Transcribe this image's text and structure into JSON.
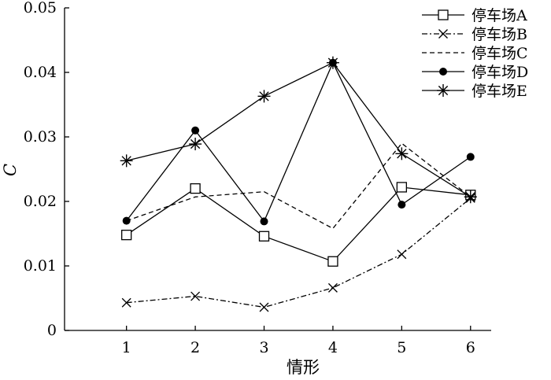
{
  "chart_data": {
    "type": "line",
    "title": "",
    "xlabel": "情形",
    "ylabel": "C",
    "x": [
      1,
      2,
      3,
      4,
      5,
      6
    ],
    "xlim": [
      0.1,
      6.3
    ],
    "ylim": [
      0,
      0.05
    ],
    "xticks": [
      "1",
      "2",
      "3",
      "4",
      "5",
      "6"
    ],
    "yticks": [
      "0",
      "0.01",
      "0.02",
      "0.03",
      "0.04",
      "0.05"
    ],
    "grid": false,
    "legend_position": "top-right",
    "series": [
      {
        "name": "停车场A",
        "marker": "open-square",
        "line_style": "solid",
        "values": [
          0.0148,
          0.022,
          0.0146,
          0.0107,
          0.0222,
          0.021
        ]
      },
      {
        "name": "停车场B",
        "marker": "x",
        "line_style": "dash-dot",
        "values": [
          0.0043,
          0.0053,
          0.0036,
          0.0066,
          0.0118,
          0.0205
        ]
      },
      {
        "name": "停车场C",
        "marker": "none",
        "line_style": "dashed",
        "values": [
          0.017,
          0.0207,
          0.0215,
          0.0158,
          0.029,
          0.0207
        ]
      },
      {
        "name": "停车场D",
        "marker": "filled-circle",
        "line_style": "solid",
        "values": [
          0.017,
          0.031,
          0.0169,
          0.0415,
          0.0195,
          0.0269
        ]
      },
      {
        "name": "停车场E",
        "marker": "asterisk",
        "line_style": "solid",
        "values": [
          0.0263,
          0.0289,
          0.0363,
          0.0415,
          0.0274,
          0.0207
        ]
      }
    ]
  }
}
